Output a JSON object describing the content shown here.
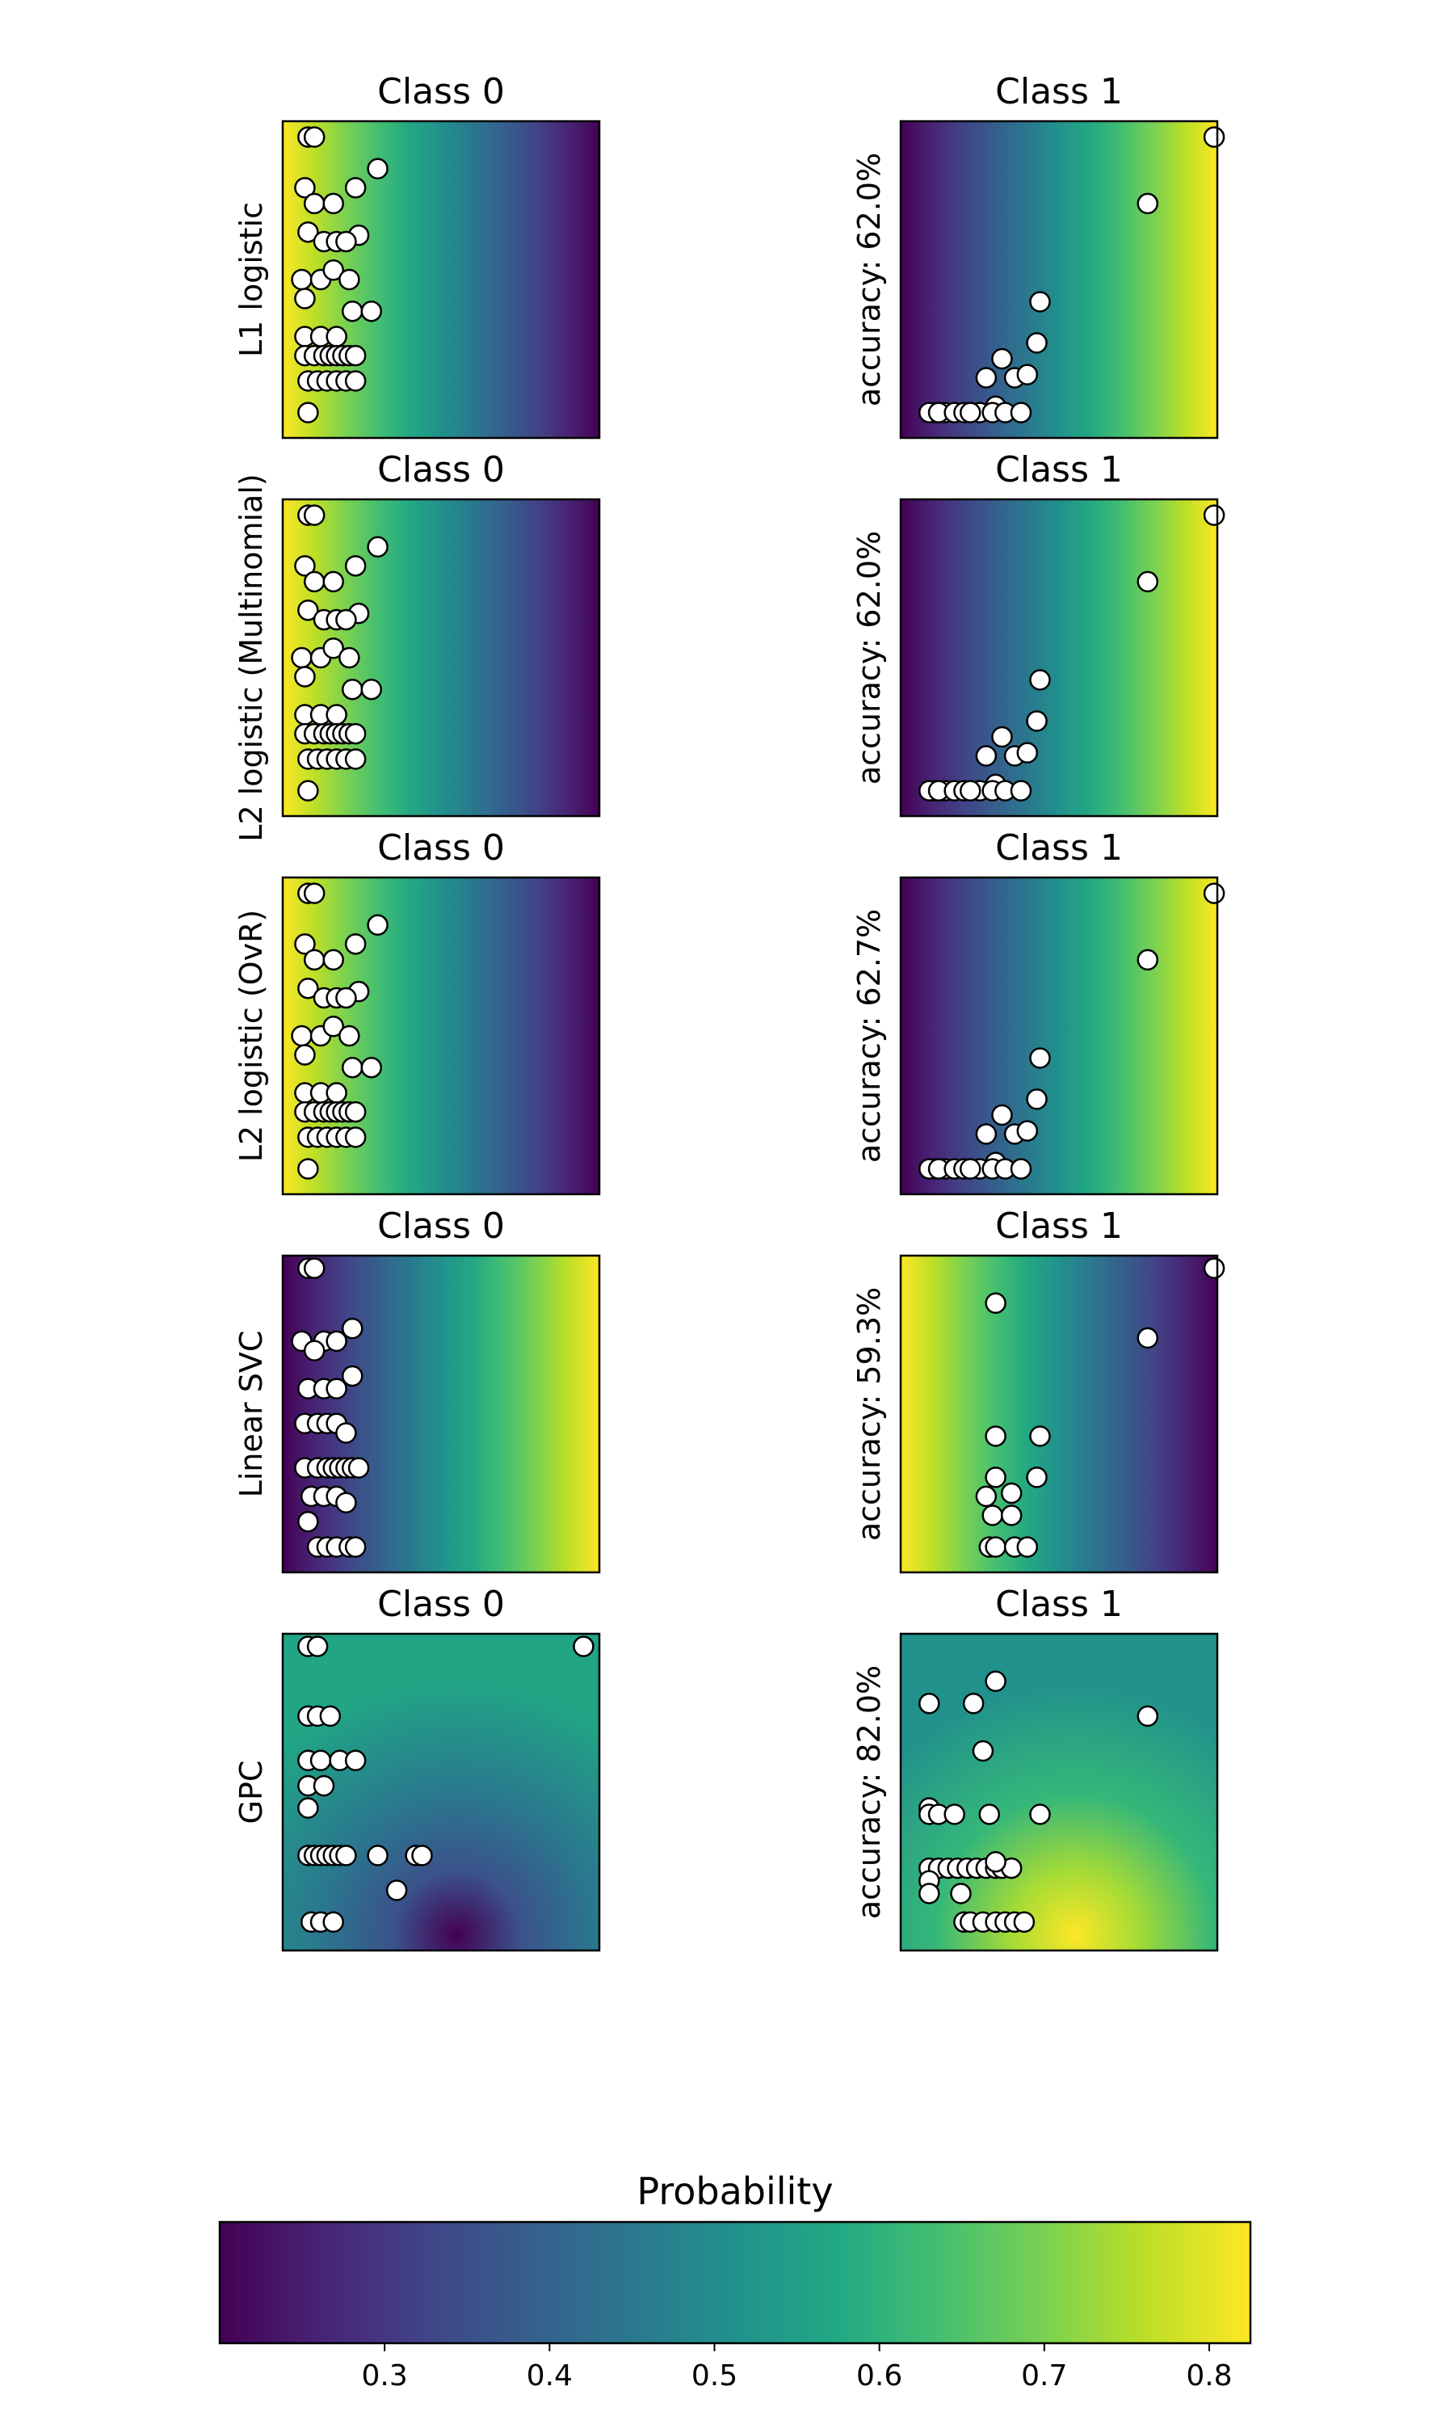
{
  "chart_data": {
    "type": "heatmap",
    "panels": [
      {
        "model": "L1 logistic",
        "accuracy": "accuracy: 62.0%",
        "class0": {
          "title": "Class 0",
          "gradient": "hor-dec"
        },
        "class1": {
          "title": "Class 1",
          "gradient": "hor-inc"
        }
      },
      {
        "model": "L2 logistic (Multinomial)",
        "accuracy": "accuracy: 62.0%",
        "class0": {
          "title": "Class 0",
          "gradient": "hor-dec"
        },
        "class1": {
          "title": "Class 1",
          "gradient": "hor-inc"
        }
      },
      {
        "model": "L2 logistic (OvR)",
        "accuracy": "accuracy: 62.7%",
        "class0": {
          "title": "Class 0",
          "gradient": "hor-dec"
        },
        "class1": {
          "title": "Class 1",
          "gradient": "hor-inc"
        }
      },
      {
        "model": "Linear SVC",
        "accuracy": "accuracy: 59.3%",
        "class0": {
          "title": "Class 0",
          "gradient": "hor-inc-low"
        },
        "class1": {
          "title": "Class 1",
          "gradient": "hor-dec"
        }
      },
      {
        "model": "GPC",
        "accuracy": "accuracy: 82.0%",
        "class0": {
          "title": "Class 0",
          "gradient": "gpc0"
        },
        "class1": {
          "title": "Class 1",
          "gradient": "gpc1"
        }
      }
    ],
    "points": {
      "class0_pattern_a": [
        [
          0.08,
          0.05
        ],
        [
          0.1,
          0.05
        ],
        [
          0.07,
          0.21
        ],
        [
          0.1,
          0.26
        ],
        [
          0.16,
          0.26
        ],
        [
          0.23,
          0.21
        ],
        [
          0.3,
          0.15
        ],
        [
          0.08,
          0.35
        ],
        [
          0.13,
          0.38
        ],
        [
          0.17,
          0.38
        ],
        [
          0.24,
          0.36
        ],
        [
          0.2,
          0.38
        ],
        [
          0.06,
          0.5
        ],
        [
          0.07,
          0.56
        ],
        [
          0.12,
          0.5
        ],
        [
          0.16,
          0.47
        ],
        [
          0.21,
          0.5
        ],
        [
          0.07,
          0.68
        ],
        [
          0.12,
          0.68
        ],
        [
          0.17,
          0.68
        ],
        [
          0.22,
          0.6
        ],
        [
          0.28,
          0.6
        ],
        [
          0.07,
          0.74
        ],
        [
          0.1,
          0.74
        ],
        [
          0.13,
          0.74
        ],
        [
          0.15,
          0.74
        ],
        [
          0.17,
          0.74
        ],
        [
          0.19,
          0.74
        ],
        [
          0.21,
          0.74
        ],
        [
          0.23,
          0.74
        ],
        [
          0.08,
          0.82
        ],
        [
          0.11,
          0.82
        ],
        [
          0.14,
          0.82
        ],
        [
          0.17,
          0.82
        ],
        [
          0.2,
          0.82
        ],
        [
          0.23,
          0.82
        ],
        [
          0.08,
          0.92
        ]
      ],
      "class1_pattern_a": [
        [
          0.99,
          0.05
        ],
        [
          0.78,
          0.26
        ],
        [
          0.44,
          0.57
        ],
        [
          0.43,
          0.7
        ],
        [
          0.32,
          0.75
        ],
        [
          0.27,
          0.81
        ],
        [
          0.36,
          0.81
        ],
        [
          0.3,
          0.9
        ],
        [
          0.25,
          0.92
        ],
        [
          0.14,
          0.92
        ],
        [
          0.11,
          0.92
        ],
        [
          0.09,
          0.92
        ],
        [
          0.12,
          0.92
        ],
        [
          0.17,
          0.92
        ],
        [
          0.2,
          0.92
        ],
        [
          0.22,
          0.92
        ],
        [
          0.29,
          0.92
        ],
        [
          0.33,
          0.92
        ],
        [
          0.38,
          0.92
        ],
        [
          0.4,
          0.8
        ]
      ],
      "class0_pattern_b": [
        [
          0.08,
          0.04
        ],
        [
          0.1,
          0.04
        ],
        [
          0.06,
          0.27
        ],
        [
          0.13,
          0.27
        ],
        [
          0.17,
          0.27
        ],
        [
          0.1,
          0.3
        ],
        [
          0.22,
          0.23
        ],
        [
          0.08,
          0.42
        ],
        [
          0.13,
          0.42
        ],
        [
          0.17,
          0.42
        ],
        [
          0.22,
          0.38
        ],
        [
          0.07,
          0.53
        ],
        [
          0.11,
          0.53
        ],
        [
          0.14,
          0.53
        ],
        [
          0.17,
          0.53
        ],
        [
          0.2,
          0.56
        ],
        [
          0.07,
          0.67
        ],
        [
          0.11,
          0.67
        ],
        [
          0.14,
          0.67
        ],
        [
          0.16,
          0.67
        ],
        [
          0.18,
          0.67
        ],
        [
          0.2,
          0.67
        ],
        [
          0.22,
          0.67
        ],
        [
          0.24,
          0.67
        ],
        [
          0.09,
          0.76
        ],
        [
          0.13,
          0.76
        ],
        [
          0.17,
          0.76
        ],
        [
          0.2,
          0.78
        ],
        [
          0.08,
          0.84
        ],
        [
          0.11,
          0.92
        ],
        [
          0.14,
          0.92
        ],
        [
          0.17,
          0.92
        ],
        [
          0.21,
          0.92
        ],
        [
          0.23,
          0.92
        ]
      ],
      "class1_pattern_b": [
        [
          0.99,
          0.04
        ],
        [
          0.78,
          0.26
        ],
        [
          0.3,
          0.15
        ],
        [
          0.3,
          0.57
        ],
        [
          0.44,
          0.57
        ],
        [
          0.43,
          0.7
        ],
        [
          0.3,
          0.7
        ],
        [
          0.27,
          0.76
        ],
        [
          0.35,
          0.75
        ],
        [
          0.29,
          0.82
        ],
        [
          0.35,
          0.82
        ],
        [
          0.28,
          0.92
        ],
        [
          0.3,
          0.92
        ],
        [
          0.36,
          0.92
        ],
        [
          0.4,
          0.92
        ]
      ],
      "gpc0": [
        [
          0.08,
          0.04
        ],
        [
          0.11,
          0.04
        ],
        [
          0.08,
          0.26
        ],
        [
          0.11,
          0.26
        ],
        [
          0.15,
          0.26
        ],
        [
          0.08,
          0.4
        ],
        [
          0.12,
          0.4
        ],
        [
          0.18,
          0.4
        ],
        [
          0.23,
          0.4
        ],
        [
          0.08,
          0.48
        ],
        [
          0.13,
          0.48
        ],
        [
          0.08,
          0.55
        ],
        [
          0.08,
          0.7
        ],
        [
          0.1,
          0.7
        ],
        [
          0.12,
          0.7
        ],
        [
          0.14,
          0.7
        ],
        [
          0.16,
          0.7
        ],
        [
          0.18,
          0.7
        ],
        [
          0.2,
          0.7
        ],
        [
          0.3,
          0.7
        ],
        [
          0.42,
          0.7
        ],
        [
          0.44,
          0.7
        ],
        [
          0.36,
          0.81
        ],
        [
          0.09,
          0.91
        ],
        [
          0.12,
          0.91
        ],
        [
          0.16,
          0.91
        ],
        [
          0.95,
          0.04
        ]
      ],
      "gpc1": [
        [
          0.09,
          0.22
        ],
        [
          0.23,
          0.22
        ],
        [
          0.3,
          0.15
        ],
        [
          0.78,
          0.26
        ],
        [
          0.26,
          0.37
        ],
        [
          0.09,
          0.55
        ],
        [
          0.09,
          0.57
        ],
        [
          0.12,
          0.57
        ],
        [
          0.17,
          0.57
        ],
        [
          0.28,
          0.57
        ],
        [
          0.44,
          0.57
        ],
        [
          0.09,
          0.74
        ],
        [
          0.12,
          0.74
        ],
        [
          0.15,
          0.74
        ],
        [
          0.18,
          0.74
        ],
        [
          0.21,
          0.74
        ],
        [
          0.24,
          0.74
        ],
        [
          0.27,
          0.74
        ],
        [
          0.3,
          0.74
        ],
        [
          0.32,
          0.74
        ],
        [
          0.35,
          0.74
        ],
        [
          0.09,
          0.78
        ],
        [
          0.09,
          0.82
        ],
        [
          0.19,
          0.82
        ],
        [
          0.3,
          0.72
        ],
        [
          0.2,
          0.91
        ],
        [
          0.22,
          0.91
        ],
        [
          0.26,
          0.91
        ],
        [
          0.3,
          0.91
        ],
        [
          0.33,
          0.91
        ],
        [
          0.36,
          0.91
        ],
        [
          0.39,
          0.91
        ]
      ]
    },
    "colorbar": {
      "label": "Probability",
      "min": 0.2,
      "max": 0.825,
      "ticks": [
        "0.3",
        "0.4",
        "0.5",
        "0.6",
        "0.7",
        "0.8"
      ],
      "tick_values": [
        0.3,
        0.4,
        0.5,
        0.6,
        0.7,
        0.8
      ]
    },
    "colormap": "viridis"
  }
}
